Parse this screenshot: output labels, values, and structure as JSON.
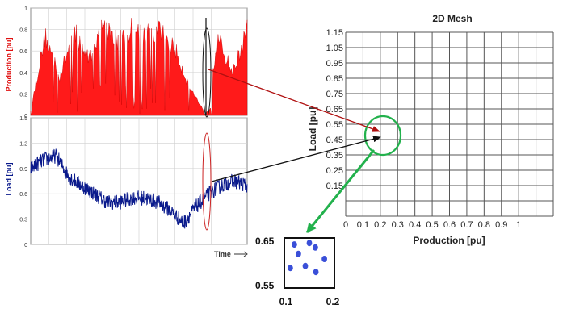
{
  "colors": {
    "production_fill": "#ff1a1a",
    "load_line": "#0a1a8c",
    "red_arrow": "#b01010",
    "black_arrow": "#111111",
    "green_marker": "#22b14c",
    "inset_dot": "#3a4fd8",
    "grid": "#9a9a9a"
  },
  "production_panel": {
    "ylabel": "Production [pu]",
    "yticks": [
      "0",
      "0.2",
      "0.4",
      "0.6",
      "0.8",
      "1"
    ]
  },
  "load_panel": {
    "ylabel": "Load [pu]",
    "yticks": [
      "0",
      "0.3",
      "0.6",
      "0.9",
      "1.2",
      "1.5"
    ],
    "xlabel": "Time"
  },
  "mesh": {
    "title": "2D Mesh",
    "xlabel": "Production [pu]",
    "ylabel": "Load [pu]",
    "xticks": [
      "0",
      "0.1",
      "0.2",
      "0.3",
      "0.4",
      "0.5",
      "0.6",
      "0.7",
      "0.8",
      "0.9",
      "1"
    ],
    "yticks": [
      "1.15",
      "1.05",
      "0.95",
      "0.85",
      "0.75",
      "0.65",
      "0.55",
      "0.45",
      "0.35",
      "0.25",
      "0.15"
    ]
  },
  "inset": {
    "y_top": "0.65",
    "y_bottom": "0.55",
    "x_left": "0.1",
    "x_right": "0.2",
    "dots": [
      {
        "production": 0.12,
        "load": 0.637
      },
      {
        "production": 0.15,
        "load": 0.64
      },
      {
        "production": 0.162,
        "load": 0.631
      },
      {
        "production": 0.128,
        "load": 0.618
      },
      {
        "production": 0.18,
        "load": 0.608
      },
      {
        "production": 0.112,
        "load": 0.59
      },
      {
        "production": 0.142,
        "load": 0.594
      },
      {
        "production": 0.163,
        "load": 0.582
      }
    ]
  },
  "chart_data": [
    {
      "type": "area",
      "ylabel": "Production [pu]",
      "ylim": [
        0,
        1
      ],
      "series": [
        {
          "name": "Production [pu]",
          "values": [
            0.05,
            0.85,
            0.4,
            0.9,
            0.6,
            0.95,
            0.8,
            0.92,
            0.85,
            0.9,
            0.7,
            0.3,
            0.05,
            0.8,
            0.45,
            0.9
          ]
        }
      ]
    },
    {
      "type": "line",
      "ylabel": "Load [pu]",
      "xlabel": "Time",
      "ylim": [
        0,
        1.5
      ],
      "series": [
        {
          "name": "Load [pu]",
          "values": [
            0.9,
            1.0,
            1.05,
            0.8,
            0.7,
            0.6,
            0.5,
            0.5,
            0.55,
            0.55,
            0.5,
            0.4,
            0.25,
            0.45,
            0.6,
            0.7,
            0.75,
            0.7
          ]
        }
      ]
    }
  ]
}
